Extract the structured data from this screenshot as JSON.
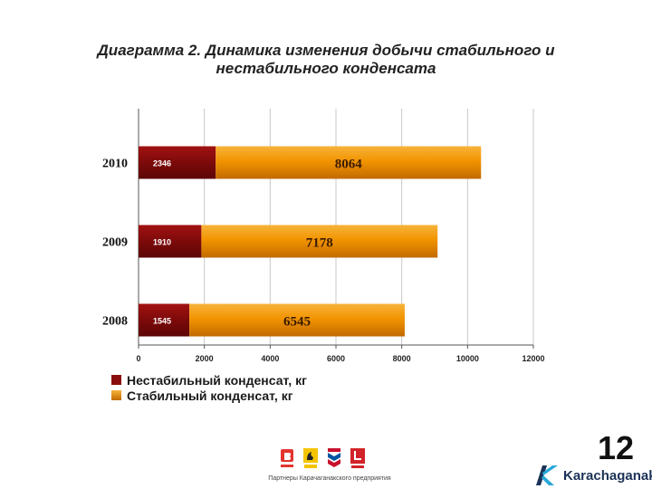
{
  "title_line1": "Диаграмма 2. Динамика изменения добычи стабильного и",
  "title_line2": "нестабильного конденсата",
  "chart_data": {
    "type": "bar",
    "orientation": "horizontal",
    "stacked": true,
    "categories": [
      "2010",
      "2009",
      "2008"
    ],
    "series": [
      {
        "name": "Нестабильный конденсат, кг",
        "values": [
          2346,
          1910,
          1545
        ],
        "labels": [
          "2346",
          "1910",
          "1545"
        ],
        "color": "#8b0c0c"
      },
      {
        "name": "Стабильный конденсат, кг",
        "values": [
          8064,
          7178,
          6545
        ],
        "labels": [
          "8064",
          "7178",
          "6545"
        ],
        "color": "#f29400"
      }
    ],
    "xlim": [
      0,
      12000
    ],
    "xticks": [
      "0",
      "2000",
      "4000",
      "6000",
      "8000",
      "10000",
      "12000"
    ],
    "grid": true,
    "legend_position": "bottom-left"
  },
  "page_number": "12",
  "partners": {
    "logos": [
      "bg-logo",
      "eni-logo",
      "chevron-logo",
      "lukoil-logo"
    ],
    "caption": "Партнеры Карачаганакского предприятия"
  },
  "brand": {
    "name": "Karachaganak",
    "color": "#1b3358",
    "accent": "#2aa7d8"
  }
}
